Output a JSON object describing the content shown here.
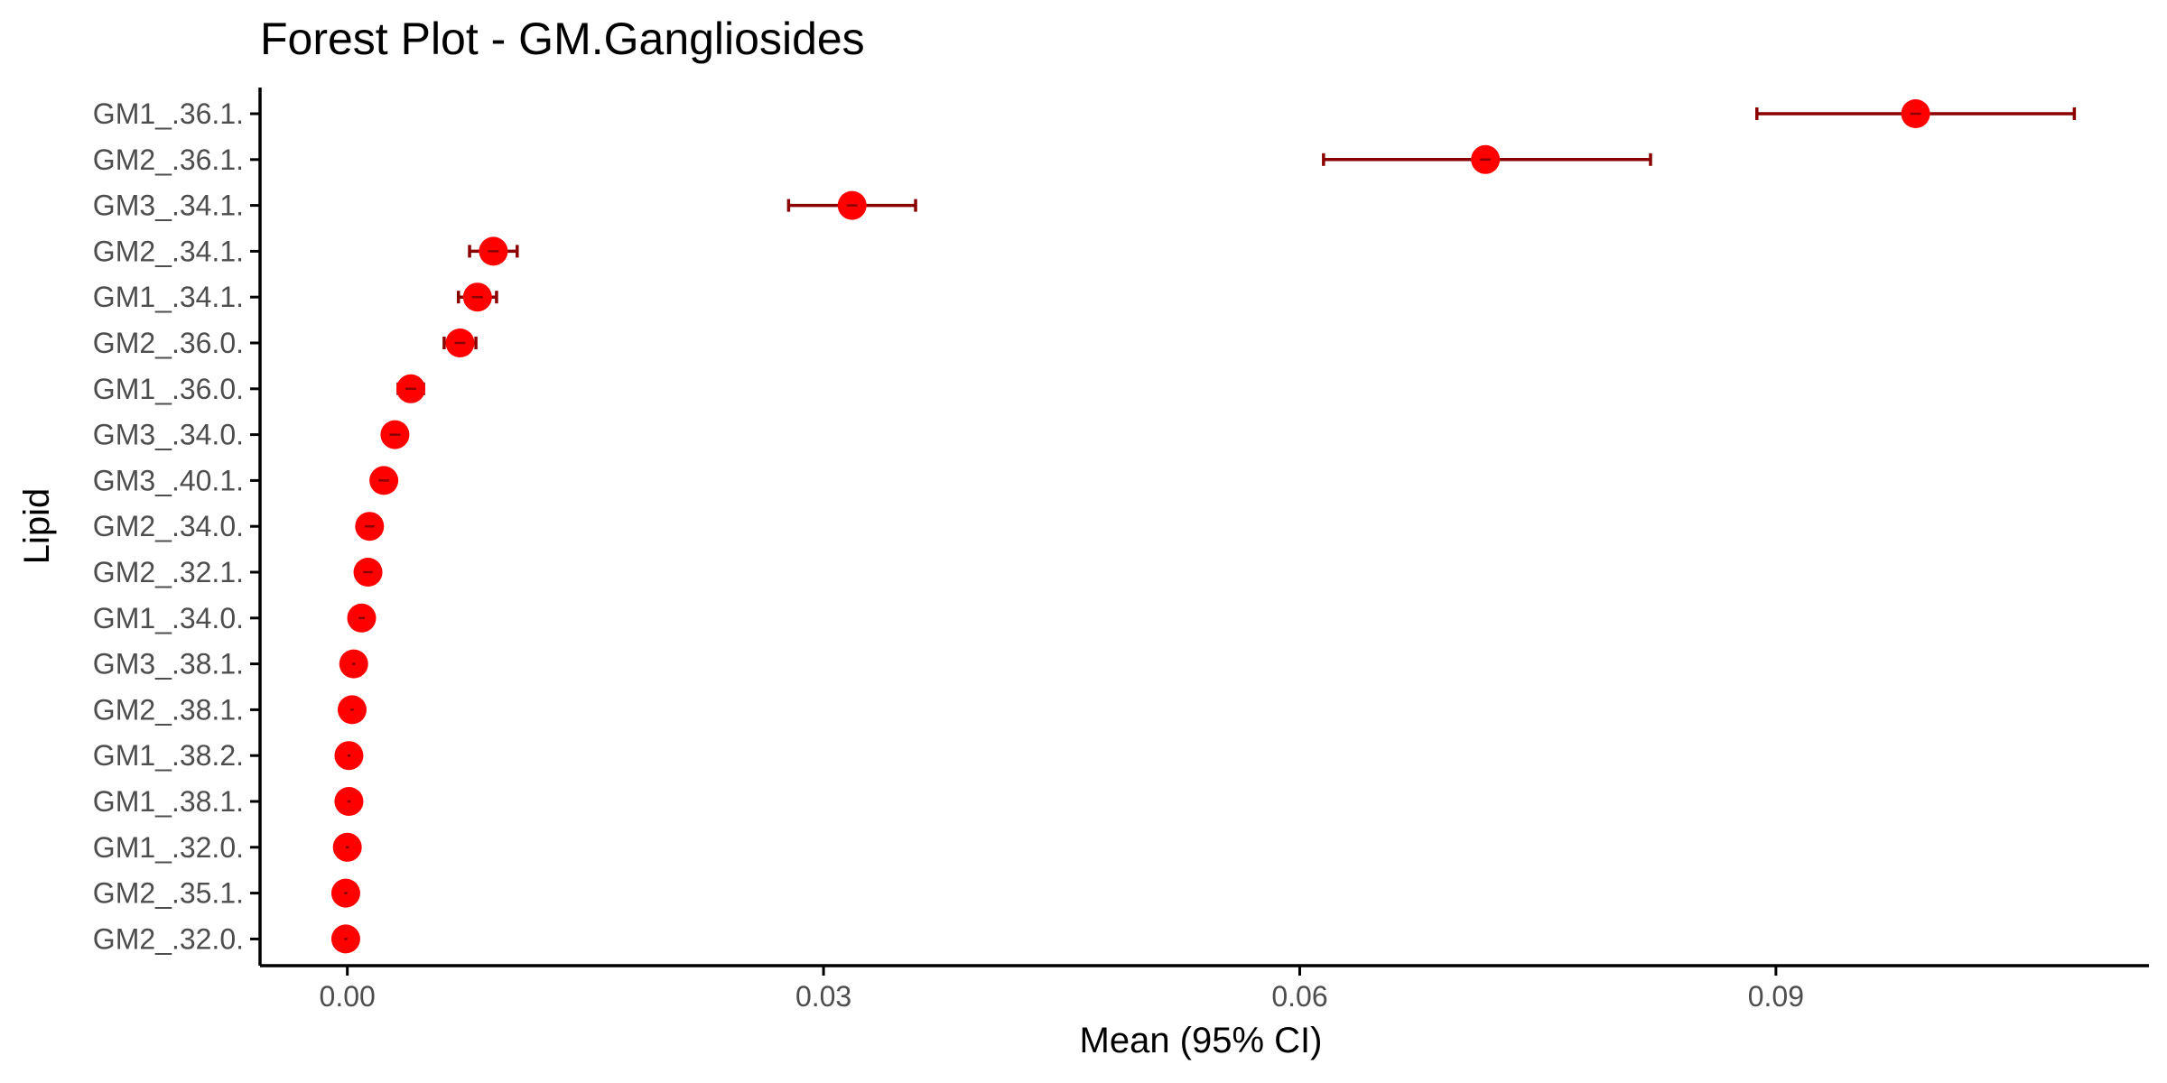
{
  "chart_data": {
    "type": "scatter",
    "subtype": "forest-plot",
    "title": "Forest Plot - GM.Gangliosides",
    "xlabel": "Mean (95% CI)",
    "ylabel": "Lipid",
    "xlim": [
      -0.0055,
      0.1135
    ],
    "x_ticks": [
      0.0,
      0.03,
      0.06,
      0.09
    ],
    "x_tick_labels": [
      "0.00",
      "0.03",
      "0.06",
      "0.09"
    ],
    "grid": false,
    "legend": "none",
    "point_color": "#ff0000",
    "error_bar_color": "#8b0000",
    "axis_color": "#000000",
    "tick_label_color": "#4d4d4d",
    "categories": [
      "GM1_.36.1.",
      "GM2_.36.1.",
      "GM3_.34.1.",
      "GM2_.34.1.",
      "GM1_.34.1.",
      "GM2_.36.0.",
      "GM1_.36.0.",
      "GM3_.34.0.",
      "GM3_.40.1.",
      "GM2_.34.0.",
      "GM2_.32.1.",
      "GM1_.34.0.",
      "GM3_.38.1.",
      "GM2_.38.1.",
      "GM1_.38.2.",
      "GM1_.38.1.",
      "GM1_.32.0.",
      "GM2_.35.1.",
      "GM2_.32.0."
    ],
    "series": [
      {
        "mean": [
          0.0988,
          0.0717,
          0.0318,
          0.0092,
          0.0082,
          0.0071,
          0.004,
          0.003,
          0.0023,
          0.0014,
          0.0013,
          0.0009,
          0.0004,
          0.0003,
          0.0001,
          0.0001,
          0.0,
          -0.0001,
          -0.0001
        ],
        "lower": [
          0.0888,
          0.0615,
          0.0278,
          0.0077,
          0.007,
          0.0061,
          0.0032,
          0.0026,
          0.0017,
          0.0011,
          0.001,
          0.0007,
          0.0003,
          0.0002,
          0.0,
          0.0,
          -0.0001,
          -0.0002,
          -0.0002
        ],
        "upper": [
          0.1088,
          0.0821,
          0.0358,
          0.0107,
          0.0094,
          0.0081,
          0.0048,
          0.0034,
          0.0029,
          0.0017,
          0.0016,
          0.0011,
          0.0005,
          0.0004,
          0.0002,
          0.0002,
          0.0001,
          0.0,
          0.0
        ]
      }
    ]
  }
}
